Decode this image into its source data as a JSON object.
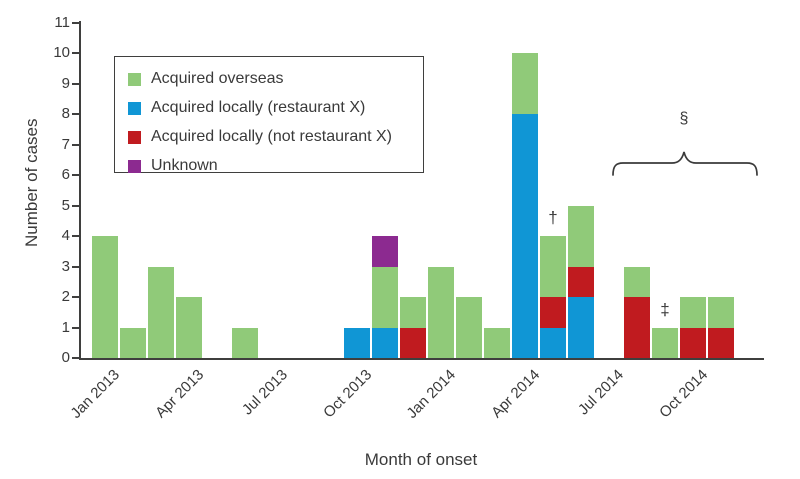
{
  "chart_data": {
    "type": "bar",
    "variant": "stacked",
    "title": "",
    "xlabel": "Month of onset",
    "ylabel": "Number of cases",
    "ylim": [
      0,
      11
    ],
    "ytick_interval": 1,
    "y_tick_labels": [
      "0",
      "1",
      "2",
      "3",
      "4",
      "5",
      "6",
      "7",
      "8",
      "9",
      "10",
      "11"
    ],
    "x_tick_labels": [
      "Jan 2013",
      "Apr 2013",
      "Jul 2013",
      "Oct 2013",
      "Jan 2014",
      "Apr 2014",
      "Jul 2014",
      "Oct 2014"
    ],
    "x_tick_positions": [
      0,
      3,
      6,
      9,
      12,
      15,
      18,
      21
    ],
    "grid": "off",
    "legend_position": "top-left-inside",
    "categories": [
      "Jan 2013",
      "Feb 2013",
      "Mar 2013",
      "Apr 2013",
      "May 2013",
      "Jun 2013",
      "Jul 2013",
      "Aug 2013",
      "Sep 2013",
      "Oct 2013",
      "Nov 2013",
      "Dec 2013",
      "Jan 2014",
      "Feb 2014",
      "Mar 2014",
      "Apr 2014",
      "May 2014",
      "Jun 2014",
      "Jul 2014",
      "Aug 2014",
      "Sep 2014",
      "Oct 2014",
      "Nov 2014",
      "Dec 2014"
    ],
    "series": [
      {
        "name": "Acquired overseas",
        "color": "#90ca79",
        "values": [
          4,
          1,
          3,
          2,
          0,
          1,
          0,
          0,
          0,
          0,
          2,
          1,
          3,
          2,
          1,
          2,
          2,
          2,
          0,
          1,
          1,
          1,
          1,
          0
        ]
      },
      {
        "name": "Acquired locally (restaurant X)",
        "color": "#1096d5",
        "values": [
          0,
          0,
          0,
          0,
          0,
          0,
          0,
          0,
          0,
          1,
          1,
          0,
          0,
          0,
          0,
          8,
          1,
          2,
          0,
          0,
          0,
          0,
          0,
          0
        ]
      },
      {
        "name": "Acquired locally (not restaurant X)",
        "color": "#c01b1f",
        "values": [
          0,
          0,
          0,
          0,
          0,
          0,
          0,
          0,
          0,
          0,
          0,
          1,
          0,
          0,
          0,
          0,
          1,
          1,
          0,
          2,
          0,
          1,
          1,
          0
        ]
      },
      {
        "name": "Unknown",
        "color": "#8c2a90",
        "values": [
          0,
          0,
          0,
          0,
          0,
          0,
          0,
          0,
          0,
          0,
          1,
          0,
          0,
          0,
          0,
          0,
          0,
          0,
          0,
          0,
          0,
          0,
          0,
          0
        ]
      }
    ],
    "stack_order_bottom_to_top": [
      "Acquired locally (restaurant X)",
      "Acquired locally (not restaurant X)",
      "Acquired overseas",
      "Unknown"
    ],
    "totals_by_month": [
      4,
      1,
      3,
      2,
      0,
      1,
      0,
      0,
      0,
      1,
      4,
      2,
      3,
      2,
      1,
      10,
      4,
      5,
      0,
      3,
      1,
      2,
      2,
      0
    ],
    "annotations": [
      {
        "symbol": "†",
        "name": "dagger",
        "month": "May 2014"
      },
      {
        "symbol": "‡",
        "name": "double-dagger",
        "month": "Sep 2014"
      },
      {
        "symbol": "§",
        "name": "section-sign-with-brace",
        "type": "brace",
        "from_month": "Aug 2014",
        "to_month": "Dec 2014"
      }
    ],
    "axis_color": "#3f3f3e",
    "text_color": "#3a3a3a"
  }
}
